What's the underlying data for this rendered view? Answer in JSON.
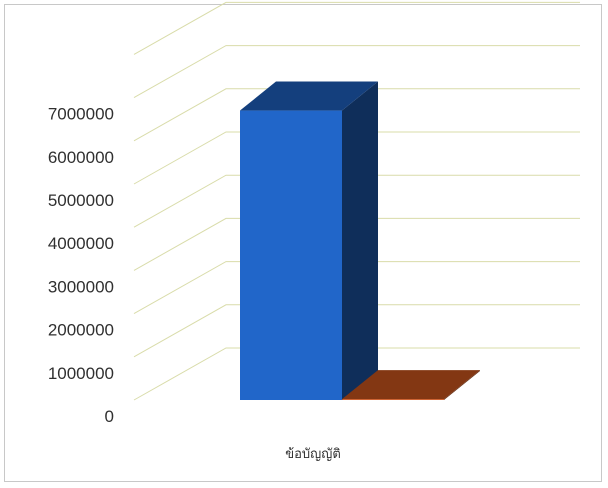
{
  "chart_data": {
    "type": "bar",
    "style": "3d-clustered-column",
    "categories": [
      "ข้อบัญญัติ"
    ],
    "series": [
      {
        "values": [
          6700000
        ],
        "color": "#2166c9"
      },
      {
        "values": [
          20000
        ],
        "color": "#d4581f"
      }
    ],
    "yticks": [
      "0",
      "1000000",
      "2000000",
      "3000000",
      "4000000",
      "5000000",
      "6000000",
      "7000000"
    ],
    "ylim": [
      0,
      8000000
    ],
    "grid": true,
    "gridline_color": "#d9dcaa"
  }
}
